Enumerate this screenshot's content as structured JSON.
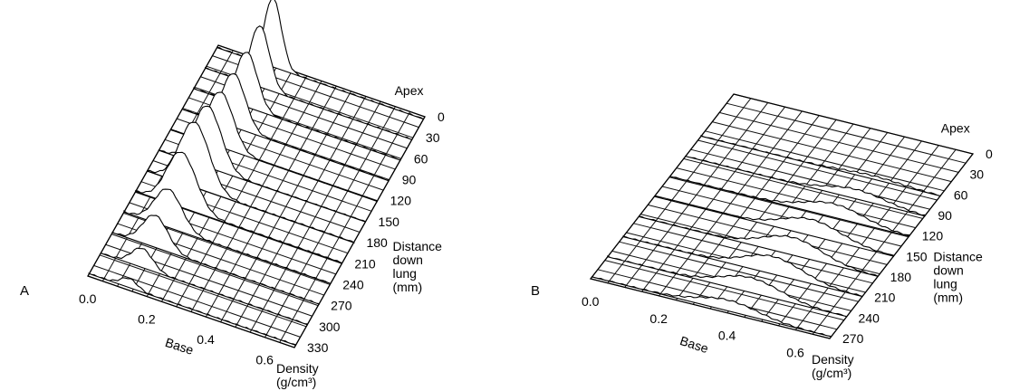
{
  "panels": [
    {
      "label": "A",
      "apex_label": "Apex",
      "base_label": "Base",
      "distance_label": [
        "Distance",
        "down",
        "lung",
        "(mm)"
      ],
      "density_label": [
        "Density",
        "(g/cm³)"
      ],
      "x_ticks": [
        "0.0",
        "0.2",
        "0.4",
        "0.6"
      ],
      "y_ticks": [
        "0",
        "30",
        "60",
        "90",
        "120",
        "150",
        "180",
        "210",
        "240",
        "270",
        "300",
        "330"
      ]
    },
    {
      "label": "B",
      "apex_label": "Apex",
      "base_label": "Base",
      "distance_label": [
        "Distance",
        "down",
        "lung",
        "(mm)"
      ],
      "density_label": [
        "Density",
        "(g/cm³)"
      ],
      "x_ticks": [
        "0.0",
        "0.2",
        "0.4",
        "0.6"
      ],
      "y_ticks": [
        "0",
        "30",
        "60",
        "90",
        "120",
        "150",
        "180",
        "210",
        "240",
        "270"
      ]
    }
  ],
  "chart_data": [
    {
      "type": "surface",
      "panel": "A",
      "x_axis": "Density (g/cm³)",
      "y_axis": "Distance down lung (mm)",
      "xlim": [
        0.0,
        0.7
      ],
      "ylim": [
        0,
        330
      ],
      "x_ticks": [
        0.0,
        0.2,
        0.4,
        0.6
      ],
      "y_ticks": [
        0,
        30,
        60,
        90,
        120,
        150,
        180,
        210,
        240,
        270,
        300,
        330
      ],
      "peak_density": [
        0.19,
        0.185,
        0.18,
        0.175,
        0.17,
        0.165,
        0.16,
        0.155,
        0.15,
        0.145,
        0.14,
        0.135
      ],
      "peak_height": [
        0.9,
        0.8,
        0.72,
        0.7,
        0.72,
        0.8,
        0.85,
        0.72,
        0.5,
        0.42,
        0.25,
        0.12
      ],
      "peak_width": [
        0.04,
        0.045,
        0.05,
        0.055,
        0.06,
        0.065,
        0.07,
        0.07,
        0.065,
        0.06,
        0.05,
        0.04
      ]
    },
    {
      "type": "surface",
      "panel": "B",
      "x_axis": "Density (g/cm³)",
      "y_axis": "Distance down lung (mm)",
      "xlim": [
        0.0,
        0.7
      ],
      "ylim": [
        0,
        270
      ],
      "x_ticks": [
        0.0,
        0.2,
        0.4,
        0.6
      ],
      "y_ticks": [
        0,
        30,
        60,
        90,
        120,
        150,
        180,
        210,
        240,
        270
      ],
      "peak_density": [
        0.5,
        0.5,
        0.5,
        0.5,
        0.48,
        0.46,
        0.45,
        0.44,
        0.42,
        0.4
      ],
      "peak_height": [
        0.0,
        0.0,
        0.05,
        0.14,
        0.2,
        0.24,
        0.26,
        0.26,
        0.22,
        0.16
      ],
      "peak_width": [
        0.12,
        0.12,
        0.12,
        0.12,
        0.12,
        0.12,
        0.12,
        0.12,
        0.12,
        0.12
      ]
    }
  ]
}
